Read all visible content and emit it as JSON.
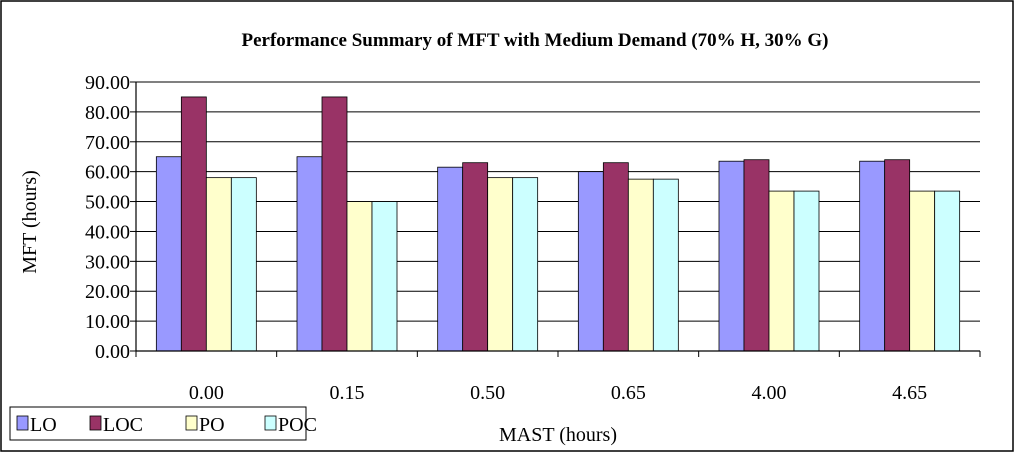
{
  "chart_data": {
    "type": "bar",
    "title": "Performance Summary of MFT with Medium Demand  (70% H, 30% G)",
    "xlabel": "MAST (hours)",
    "ylabel": "MFT (hours)",
    "categories": [
      "0.00",
      "0.15",
      "0.50",
      "0.65",
      "4.00",
      "4.65"
    ],
    "ylim": [
      0,
      90
    ],
    "yticks": [
      "0.00",
      "10.00",
      "20.00",
      "30.00",
      "40.00",
      "50.00",
      "60.00",
      "70.00",
      "80.00",
      "90.00"
    ],
    "grid": true,
    "legend_position": "bottom-left",
    "series": [
      {
        "name": "LO",
        "color": "#9999ff",
        "values": [
          65.0,
          65.0,
          61.5,
          60.0,
          63.5,
          63.5
        ]
      },
      {
        "name": "LOC",
        "color": "#993366",
        "values": [
          85.0,
          85.0,
          63.0,
          63.0,
          64.0,
          64.0
        ]
      },
      {
        "name": "PO",
        "color": "#ffffcc",
        "values": [
          58.0,
          50.0,
          58.0,
          57.5,
          53.5,
          53.5
        ]
      },
      {
        "name": "POC",
        "color": "#ccffff",
        "values": [
          58.0,
          50.0,
          58.0,
          57.5,
          53.5,
          53.5
        ]
      }
    ]
  }
}
